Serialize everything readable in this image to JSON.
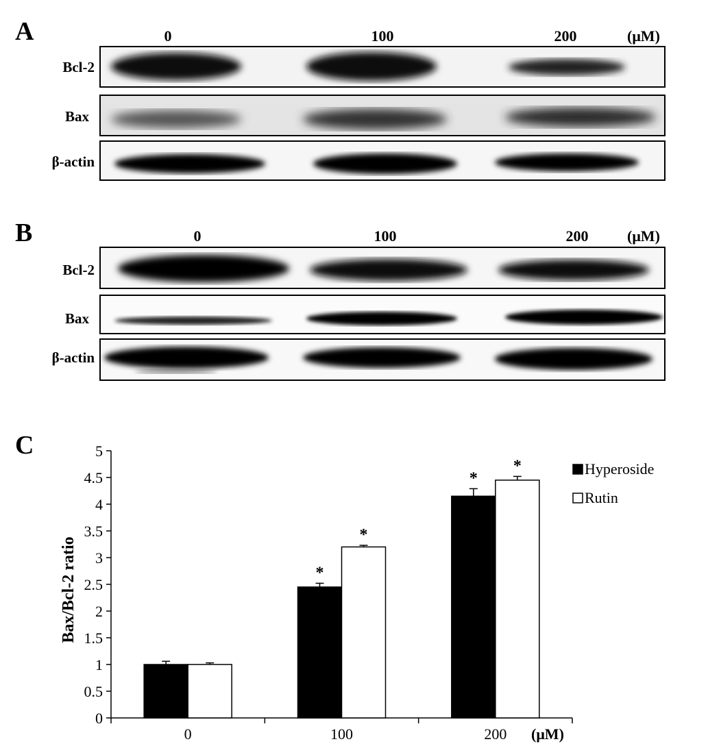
{
  "panels": {
    "a": {
      "letter": "A",
      "lanes": [
        "0",
        "100",
        "200"
      ],
      "unit": "(μM)",
      "rows": [
        "Bcl-2",
        "Bax",
        "β-actin"
      ]
    },
    "b": {
      "letter": "B",
      "lanes": [
        "0",
        "100",
        "200"
      ],
      "unit": "(μM)",
      "rows": [
        "Bcl-2",
        "Bax",
        "β-actin"
      ]
    },
    "c": {
      "letter": "C"
    }
  },
  "chart_data": {
    "type": "bar",
    "categories": [
      "0",
      "100",
      "200"
    ],
    "x_unit": "(μM)",
    "ylabel": "Bax/Bcl-2 ratio",
    "xlabel": "",
    "title": "",
    "ylim": [
      0,
      5
    ],
    "yticks": [
      "0",
      "0.5",
      "1",
      "1.5",
      "2",
      "2.5",
      "3",
      "3.5",
      "4",
      "4.5",
      "5"
    ],
    "legend_position": "top-right",
    "grid": false,
    "series": [
      {
        "name": "Hyperoside",
        "values": [
          1.0,
          2.45,
          4.15
        ],
        "errors": [
          0.06,
          0.07,
          0.14
        ],
        "significance": [
          "",
          "*",
          "*"
        ],
        "color": "#000000"
      },
      {
        "name": "Rutin",
        "values": [
          1.0,
          3.2,
          4.45
        ],
        "errors": [
          0.03,
          0.03,
          0.07
        ],
        "significance": [
          "",
          "*",
          "*"
        ],
        "color": "#ffffff"
      }
    ]
  }
}
